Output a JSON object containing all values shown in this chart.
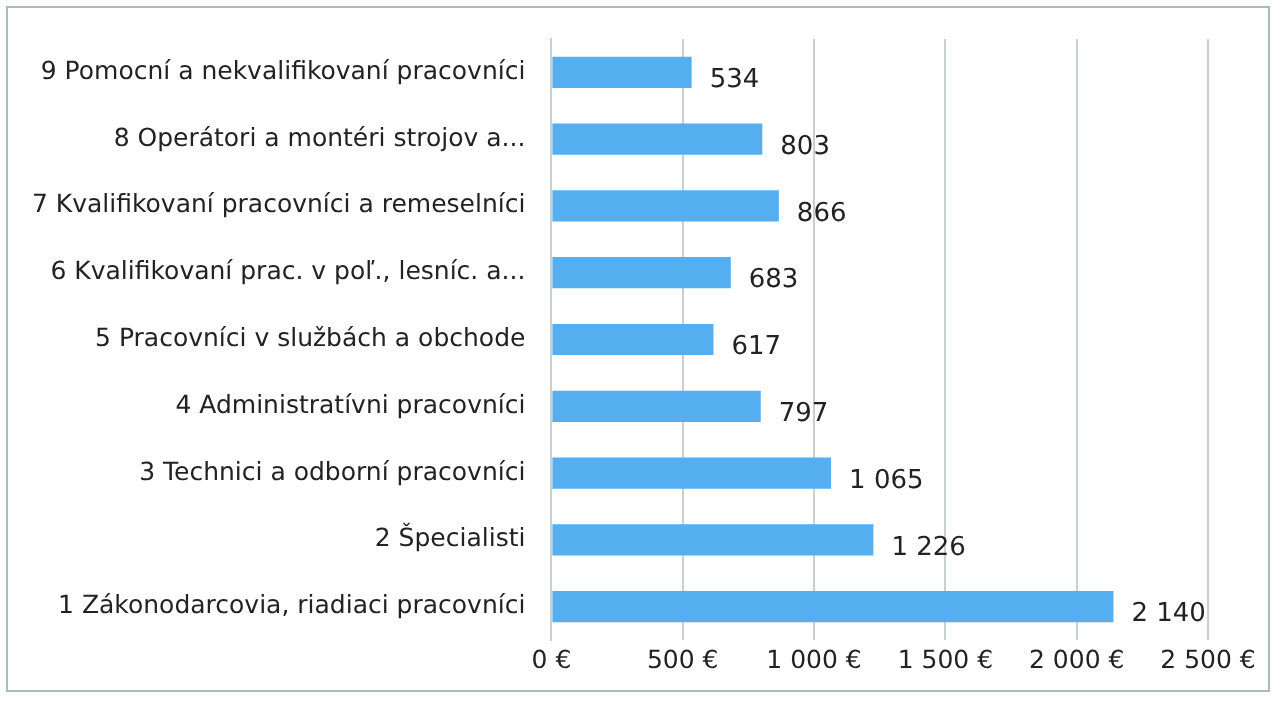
{
  "chart_data": {
    "type": "bar",
    "orientation": "horizontal",
    "categories": [
      "9 Pomocní a nekvalifikovaní pracovníci",
      "8 Operátori a montéri strojov a...",
      "7 Kvalifikovaní pracovníci a remeselníci",
      "6 Kvalifikovaní prac. v poľ., lesníc. a...",
      "5 Pracovníci v službách a obchode",
      "4 Administratívni pracovníci",
      "3 Technici a odborní pracovníci",
      "2 Špecialisti",
      "1 Zákonodarcovia, riadiaci pracovníci"
    ],
    "values": [
      534,
      803,
      866,
      683,
      617,
      797,
      1065,
      1226,
      2140
    ],
    "value_labels": [
      "534",
      "803",
      "866",
      "683",
      "617",
      "797",
      "1 065",
      "1 226",
      "2 140"
    ],
    "color": "#55aef0",
    "xlim": [
      0,
      2500
    ],
    "xticks": [
      {
        "value": 0,
        "label": "0 €"
      },
      {
        "value": 500,
        "label": "500 €"
      },
      {
        "value": 1000,
        "label": "1 000 €"
      },
      {
        "value": 1500,
        "label": "1 500 €"
      },
      {
        "value": 2000,
        "label": "2 000 €"
      },
      {
        "value": 2500,
        "label": "2 500 €"
      }
    ],
    "grid": "x"
  }
}
